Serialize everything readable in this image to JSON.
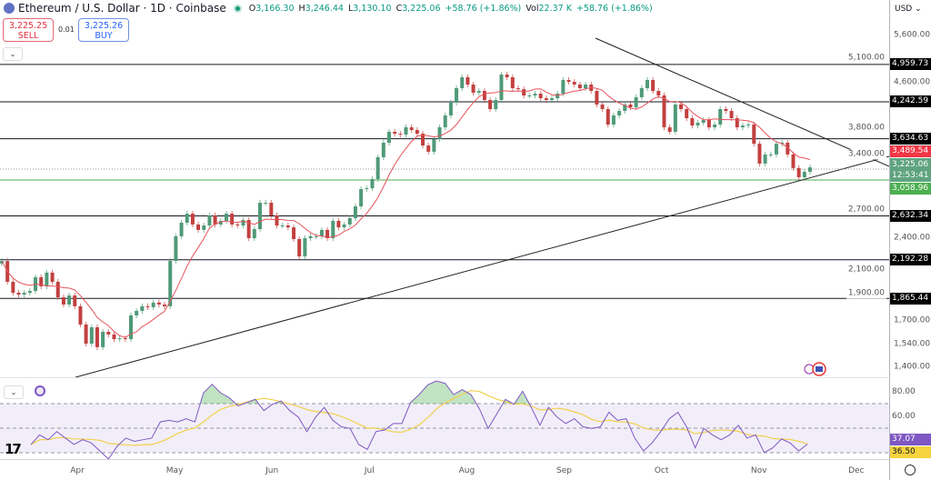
{
  "header": {
    "title": "Ethereum / U.S. Dollar · 1D · Coinbase",
    "ohlc": [
      {
        "k": "O",
        "v": "3,166.30"
      },
      {
        "k": "H",
        "v": "3,246.44"
      },
      {
        "k": "L",
        "v": "3,130.10"
      },
      {
        "k": "C",
        "v": "3,225.06"
      }
    ],
    "change": "+58.76 (+1.86%)",
    "vol_label": "Vol",
    "vol": "22.37 K",
    "vol_change": "+58.76 (+1.86%)"
  },
  "trade": {
    "sell_price": "3,225.25",
    "sell_label": "SELL",
    "spread": "0.01",
    "buy_price": "3,225.26",
    "buy_label": "BUY"
  },
  "axis": {
    "currency": "USD",
    "ticks": [
      "5,600.00",
      "5,100.00",
      "4,600.00",
      "3,800.00",
      "3,400.00",
      "2,700.00",
      "2,400.00",
      "2,100.00",
      "1,900.00",
      "1,700.00",
      "1,540.00",
      "1,400.00"
    ],
    "rsi_ticks": [
      "80.00",
      "60.00"
    ],
    "dates": [
      "Apr",
      "May",
      "Jun",
      "Jul",
      "Aug",
      "Sep",
      "Oct",
      "Nov",
      "Dec"
    ]
  },
  "markers": {
    "last_price": "3,225.06",
    "countdown": "12:53:41",
    "ma_value": "3,489.54",
    "rsi_value": "37.07",
    "rsi_ma_value": "36.50"
  },
  "colors": {
    "up": "#4f9a78",
    "down": "#c2403f",
    "ma": "#e5535b",
    "rsi": "#7e57c2",
    "rsi_ma": "#f2d04c",
    "level": "#131722",
    "support": "#4caf50"
  },
  "chart_data": [
    {
      "type": "candlestick",
      "scale": "log",
      "ylim": [
        1350,
        6000
      ],
      "levels": [
        {
          "label": "4,959.73",
          "value": 4959.73
        },
        {
          "label": "4,242.59",
          "value": 4242.59
        },
        {
          "label": "3,634.63",
          "value": 3634.63
        },
        {
          "label": "3,058.96",
          "value": 3058.96,
          "color": "green"
        },
        {
          "label": "2,632.34",
          "value": 2632.34
        },
        {
          "label": "2,192.28",
          "value": 2192.28
        },
        {
          "label": "1,865.44",
          "value": 1865.44
        }
      ],
      "closes": [
        2180,
        1999,
        1910,
        1895,
        1910,
        1924,
        2038,
        1962,
        2077,
        1999,
        1874,
        1818,
        1888,
        1805,
        1672,
        1544,
        1653,
        1521,
        1622,
        1604,
        1573,
        1579,
        1573,
        1737,
        1770,
        1805,
        1798,
        1833,
        1818,
        1805,
        2182,
        2418,
        2559,
        2658,
        2540,
        2483,
        2530,
        2638,
        2540,
        2579,
        2658,
        2540,
        2530,
        2588,
        2399,
        2492,
        2782,
        2782,
        2638,
        2530,
        2530,
        2510,
        2390,
        2223,
        2399,
        2418,
        2418,
        2483,
        2399,
        2579,
        2510,
        2540,
        2608,
        2740,
        2945,
        2956,
        3071,
        3365,
        3575,
        3742,
        3713,
        3699,
        3813,
        3770,
        3713,
        3534,
        3443,
        3630,
        3813,
        4007,
        4226,
        4490,
        4700,
        4559,
        4406,
        4439,
        4274,
        4115,
        4274,
        4753,
        4700,
        4490,
        4472,
        4356,
        4356,
        4389,
        4306,
        4274,
        4306,
        4389,
        4647,
        4611,
        4559,
        4490,
        4559,
        4439,
        4194,
        4115,
        3857,
        4007,
        4083,
        4194,
        4146,
        4323,
        4490,
        4647,
        4439,
        4356,
        3813,
        3742,
        4194,
        4115,
        3961,
        3842,
        3887,
        3931,
        3813,
        3857,
        4115,
        4083,
        3961,
        3813,
        3842,
        3857,
        3560,
        3277,
        3404,
        3404,
        3560,
        3575,
        3404,
        3216,
        3095,
        3166,
        3225.06
      ]
    },
    {
      "type": "line",
      "name": "RSI",
      "ylim": [
        20,
        95
      ],
      "bands": [
        30,
        50,
        70
      ],
      "values": [
        36.7,
        44.5,
        40.6,
        47.2,
        41.9,
        36.7,
        40.6,
        38,
        31.4,
        24.8,
        35.3,
        41.9,
        39.3,
        40.6,
        41.9,
        55.1,
        56.4,
        55.1,
        57.7,
        55.1,
        78.7,
        85.8,
        78.7,
        74.8,
        68.2,
        70.8,
        73.5,
        64.3,
        69.5,
        72.2,
        64.3,
        59,
        47.2,
        59,
        66.9,
        56.4,
        51.1,
        49.8,
        36.7,
        32.7,
        47.2,
        48.5,
        53.8,
        53.8,
        70.8,
        77.4,
        85.3,
        88.5,
        86.6,
        77.4,
        81.4,
        77.4,
        65.6,
        49.8,
        61.6,
        73.5,
        69.5,
        80.1,
        66.9,
        52.4,
        66.9,
        59,
        53.8,
        57.7,
        51.1,
        49.8,
        51.1,
        63,
        56.4,
        57.7,
        41.9,
        31.4,
        38,
        47.2,
        57.7,
        63,
        51.1,
        34,
        49.8,
        44.5,
        40.6,
        44.5,
        52.4,
        41.9,
        44.5,
        30.1,
        34,
        41.2,
        38,
        31.4,
        37.07
      ]
    }
  ]
}
